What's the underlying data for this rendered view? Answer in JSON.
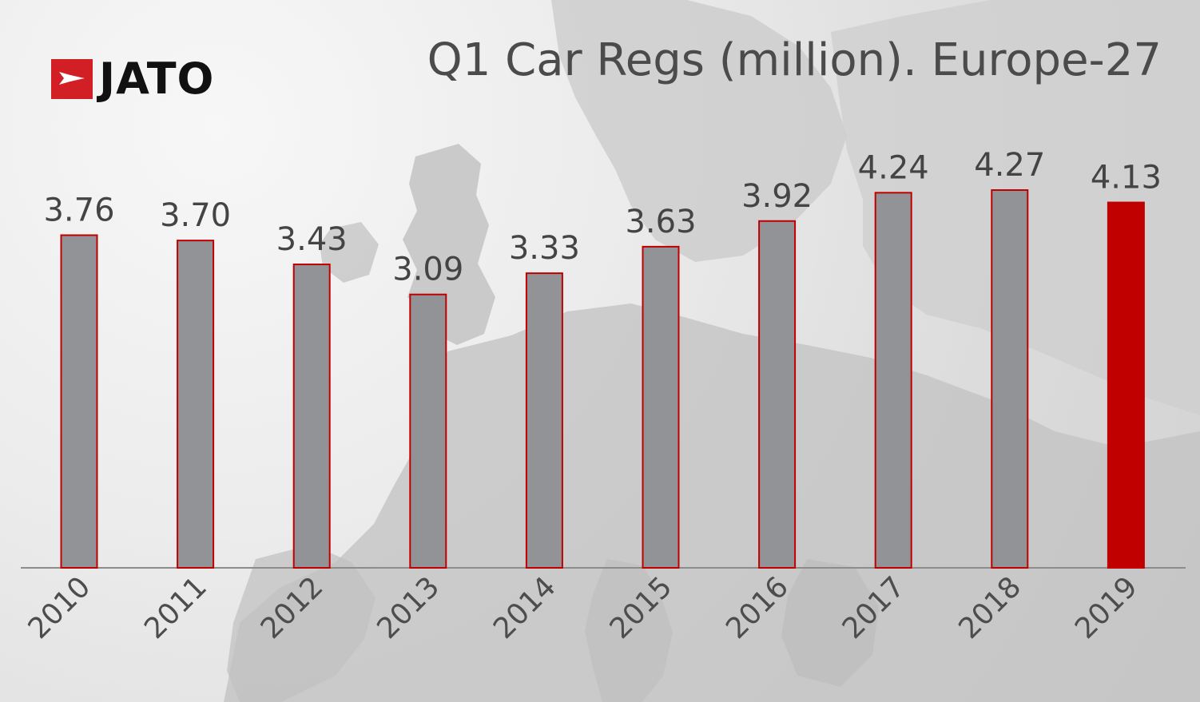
{
  "brand": {
    "logo_text": "JATO"
  },
  "chart_data": {
    "type": "bar",
    "title": "Q1 Car Regs (million). Europe-27",
    "categories": [
      "2010",
      "2011",
      "2012",
      "2013",
      "2014",
      "2015",
      "2016",
      "2017",
      "2018",
      "2019"
    ],
    "values": [
      3.76,
      3.7,
      3.43,
      3.09,
      3.33,
      3.63,
      3.92,
      4.24,
      4.27,
      4.13
    ],
    "value_labels": [
      "3.76",
      "3.70",
      "3.43",
      "3.09",
      "3.33",
      "3.63",
      "3.92",
      "4.24",
      "4.27",
      "4.13"
    ],
    "xlabel": "",
    "ylabel": "",
    "ylim": [
      0,
      4.27
    ],
    "grid": false,
    "highlight_category": "2019",
    "colors": {
      "bar": "#929397",
      "bar_outline": "#c00000",
      "highlight": "#c00000",
      "label": "#444444",
      "tick": "#4d4d4d",
      "axis": "#8c8c8c"
    }
  }
}
